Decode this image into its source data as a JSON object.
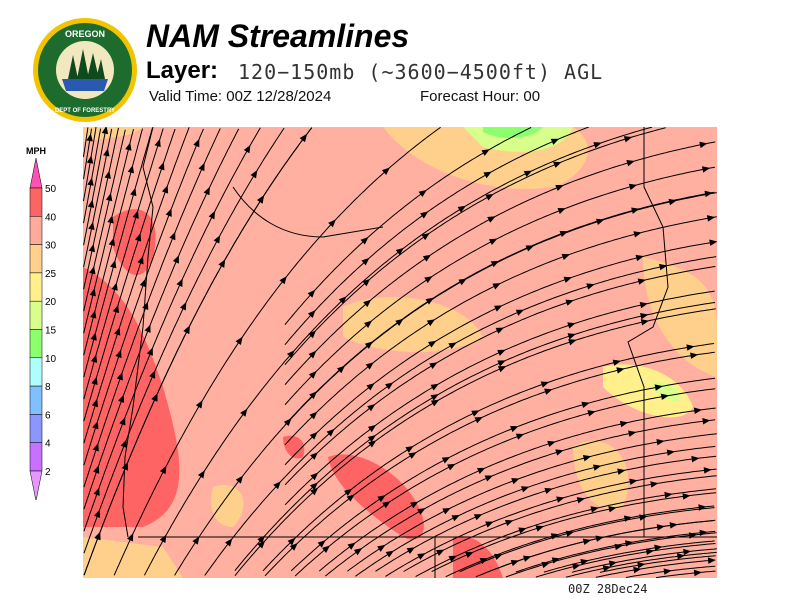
{
  "header": {
    "title": "NAM Streamlines",
    "layer_label": "Layer:",
    "layer_value": "120−150mb (~3600−4500ft) AGL",
    "valid_time": "Valid Time: 00Z 12/28/2024",
    "forecast_hour": "Forecast Hour: 00"
  },
  "logo": {
    "text_top": "OREGON",
    "text_bottom": "DEPARTMENT OF FORESTRY"
  },
  "legend": {
    "unit": "MPH",
    "levels": [
      "50",
      "40",
      "30",
      "25",
      "20",
      "15",
      "10",
      "8",
      "6",
      "4",
      "2"
    ],
    "colors": [
      "#ff6464",
      "#ffaa9a",
      "#ffd08c",
      "#fff08c",
      "#d8ff8c",
      "#8cff6e",
      "#b0ffff",
      "#80c0ff",
      "#8c96ff",
      "#c870ff"
    ],
    "over_color": "#ff50b4",
    "under_color": "#e696ff"
  },
  "stamp": "00Z 28Dec24",
  "map": {
    "background_color": "#ffb0a0"
  }
}
